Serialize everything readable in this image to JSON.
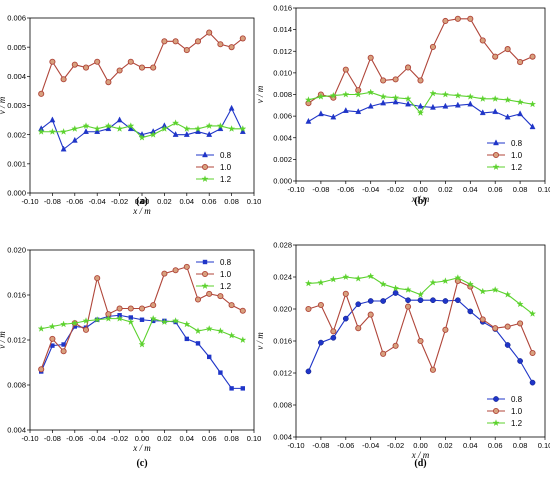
{
  "colors": {
    "s08": "#1f35c8",
    "s10": "#b0463a",
    "s12": "#5cd22e",
    "axis": "#000000"
  },
  "chart_data": [
    {
      "panel": "(a)",
      "type": "line",
      "xlabel": "x / m",
      "ylabel": "v / m",
      "xlim": [
        -0.1,
        0.1
      ],
      "ylim": [
        0.0,
        0.006
      ],
      "xticks": [
        "-0.10",
        "-0.08",
        "-0.06",
        "-0.04",
        "-0.02",
        "0.00",
        "0.02",
        "0.04",
        "0.06",
        "0.08",
        "0.10"
      ],
      "yticks": [
        "0.000",
        "0.001",
        "0.002",
        "0.003",
        "0.004",
        "0.005",
        "0.006"
      ],
      "grid": false,
      "legend_position": "bottom-right",
      "series": [
        {
          "name": "0.8",
          "marker": "triangle",
          "color": "#1f35c8",
          "x": [
            -0.09,
            -0.08,
            -0.07,
            -0.06,
            -0.05,
            -0.04,
            -0.03,
            -0.02,
            -0.01,
            0.0,
            0.01,
            0.02,
            0.03,
            0.04,
            0.05,
            0.06,
            0.07,
            0.08,
            0.09
          ],
          "y": [
            0.0022,
            0.0025,
            0.0015,
            0.0018,
            0.0021,
            0.0021,
            0.0022,
            0.0025,
            0.0022,
            0.002,
            0.0021,
            0.0023,
            0.002,
            0.002,
            0.0021,
            0.002,
            0.0022,
            0.0029,
            0.0021
          ]
        },
        {
          "name": "1.0",
          "marker": "circle",
          "color": "#b0463a",
          "x": [
            -0.09,
            -0.08,
            -0.07,
            -0.06,
            -0.05,
            -0.04,
            -0.03,
            -0.02,
            -0.01,
            0.0,
            0.01,
            0.02,
            0.03,
            0.04,
            0.05,
            0.06,
            0.07,
            0.08,
            0.09
          ],
          "y": [
            0.0034,
            0.0045,
            0.0039,
            0.0044,
            0.0043,
            0.0045,
            0.0038,
            0.0042,
            0.0045,
            0.0043,
            0.0043,
            0.0052,
            0.0052,
            0.0049,
            0.0052,
            0.0055,
            0.0051,
            0.005,
            0.0053
          ]
        },
        {
          "name": "1.2",
          "marker": "star",
          "color": "#5cd22e",
          "x": [
            -0.09,
            -0.08,
            -0.07,
            -0.06,
            -0.05,
            -0.04,
            -0.03,
            -0.02,
            -0.01,
            0.0,
            0.01,
            0.02,
            0.03,
            0.04,
            0.05,
            0.06,
            0.07,
            0.08,
            0.09
          ],
          "y": [
            0.0021,
            0.0021,
            0.0021,
            0.0022,
            0.0023,
            0.0022,
            0.0023,
            0.0022,
            0.0023,
            0.0019,
            0.002,
            0.0022,
            0.0024,
            0.0022,
            0.0022,
            0.0023,
            0.0023,
            0.0022,
            0.0022
          ]
        }
      ]
    },
    {
      "panel": "(b)",
      "type": "line",
      "xlabel": "x / m",
      "ylabel": "v / m",
      "xlim": [
        -0.1,
        0.1
      ],
      "ylim": [
        0.0,
        0.016
      ],
      "xticks": [
        "-0.10",
        "-0.08",
        "-0.06",
        "-0.04",
        "-0.02",
        "0.00",
        "0.02",
        "0.04",
        "0.06",
        "0.08",
        "0.10"
      ],
      "yticks": [
        "0.000",
        "0.002",
        "0.004",
        "0.006",
        "0.008",
        "0.010",
        "0.012",
        "0.014",
        "0.016"
      ],
      "grid": false,
      "legend_position": "bottom-right",
      "series": [
        {
          "name": "0.8",
          "marker": "triangle",
          "color": "#1f35c8",
          "x": [
            -0.09,
            -0.08,
            -0.07,
            -0.06,
            -0.05,
            -0.04,
            -0.03,
            -0.02,
            -0.01,
            0.0,
            0.01,
            0.02,
            0.03,
            0.04,
            0.05,
            0.06,
            0.07,
            0.08,
            0.09
          ],
          "y": [
            0.0055,
            0.0062,
            0.0059,
            0.0065,
            0.0064,
            0.0069,
            0.0072,
            0.0073,
            0.0071,
            0.0069,
            0.0068,
            0.0069,
            0.007,
            0.0071,
            0.0063,
            0.0064,
            0.0059,
            0.0062,
            0.005
          ]
        },
        {
          "name": "1.0",
          "marker": "circle",
          "color": "#b0463a",
          "x": [
            -0.09,
            -0.08,
            -0.07,
            -0.06,
            -0.05,
            -0.04,
            -0.03,
            -0.02,
            -0.01,
            0.0,
            0.01,
            0.02,
            0.03,
            0.04,
            0.05,
            0.06,
            0.07,
            0.08,
            0.09
          ],
          "y": [
            0.0072,
            0.008,
            0.0077,
            0.0103,
            0.0084,
            0.0114,
            0.0093,
            0.0094,
            0.0105,
            0.0093,
            0.0124,
            0.0148,
            0.015,
            0.015,
            0.013,
            0.0115,
            0.0122,
            0.011,
            0.0115
          ]
        },
        {
          "name": "1.2",
          "marker": "star",
          "color": "#5cd22e",
          "x": [
            -0.09,
            -0.08,
            -0.07,
            -0.06,
            -0.05,
            -0.04,
            -0.03,
            -0.02,
            -0.01,
            0.0,
            0.01,
            0.02,
            0.03,
            0.04,
            0.05,
            0.06,
            0.07,
            0.08,
            0.09
          ],
          "y": [
            0.0075,
            0.0078,
            0.0079,
            0.008,
            0.008,
            0.0082,
            0.0078,
            0.0077,
            0.0076,
            0.0063,
            0.0081,
            0.008,
            0.0079,
            0.0078,
            0.0076,
            0.0076,
            0.0075,
            0.0073,
            0.0071
          ]
        }
      ]
    },
    {
      "panel": "(c)",
      "type": "line",
      "xlabel": "x / m",
      "ylabel": "v / m",
      "xlim": [
        -0.1,
        0.1
      ],
      "ylim": [
        0.004,
        0.02
      ],
      "xticks": [
        "-0.10",
        "-0.08",
        "-0.06",
        "-0.04",
        "-0.02",
        "0.00",
        "0.02",
        "0.04",
        "0.06",
        "0.08",
        "0.10"
      ],
      "yticks": [
        "0.004",
        "0.008",
        "0.012",
        "0.016",
        "0.020"
      ],
      "grid": false,
      "legend_position": "top-right",
      "series": [
        {
          "name": "0.8",
          "marker": "square",
          "color": "#1f35c8",
          "x": [
            -0.09,
            -0.08,
            -0.07,
            -0.06,
            -0.05,
            -0.04,
            -0.03,
            -0.02,
            -0.01,
            0.0,
            0.01,
            0.02,
            0.03,
            0.04,
            0.05,
            0.06,
            0.07,
            0.08,
            0.09
          ],
          "y": [
            0.0092,
            0.0115,
            0.0116,
            0.0132,
            0.0131,
            0.0138,
            0.0141,
            0.0142,
            0.014,
            0.0138,
            0.0137,
            0.0137,
            0.0136,
            0.0121,
            0.0117,
            0.0105,
            0.0091,
            0.0077,
            0.0077
          ]
        },
        {
          "name": "1.0",
          "marker": "circle",
          "color": "#b0463a",
          "x": [
            -0.09,
            -0.08,
            -0.07,
            -0.06,
            -0.05,
            -0.04,
            -0.03,
            -0.02,
            -0.01,
            0.0,
            0.01,
            0.02,
            0.03,
            0.04,
            0.05,
            0.06,
            0.07,
            0.08,
            0.09
          ],
          "y": [
            0.0094,
            0.0121,
            0.011,
            0.0135,
            0.0129,
            0.0175,
            0.0143,
            0.0148,
            0.0148,
            0.0148,
            0.0151,
            0.0179,
            0.0182,
            0.0185,
            0.0156,
            0.0161,
            0.0159,
            0.0151,
            0.0146
          ]
        },
        {
          "name": "1.2",
          "marker": "star",
          "color": "#5cd22e",
          "x": [
            -0.09,
            -0.08,
            -0.07,
            -0.06,
            -0.05,
            -0.04,
            -0.03,
            -0.02,
            -0.01,
            0.0,
            0.01,
            0.02,
            0.03,
            0.04,
            0.05,
            0.06,
            0.07,
            0.08,
            0.09
          ],
          "y": [
            0.013,
            0.0132,
            0.0134,
            0.0135,
            0.0137,
            0.0138,
            0.0139,
            0.0139,
            0.0136,
            0.0116,
            0.0139,
            0.0136,
            0.0137,
            0.0134,
            0.0128,
            0.013,
            0.0128,
            0.0124,
            0.012
          ]
        }
      ]
    },
    {
      "panel": "(d)",
      "type": "line",
      "xlabel": "x / m",
      "ylabel": "v / m",
      "xlim": [
        -0.1,
        0.1
      ],
      "ylim": [
        0.004,
        0.028
      ],
      "xticks": [
        "-0.10",
        "-0.08",
        "-0.06",
        "-0.04",
        "-0.02",
        "0.00",
        "0.02",
        "0.04",
        "0.06",
        "0.08",
        "0.10"
      ],
      "yticks": [
        "0.004",
        "0.008",
        "0.012",
        "0.016",
        "0.020",
        "0.024",
        "0.028"
      ],
      "grid": false,
      "legend_position": "bottom-right",
      "series": [
        {
          "name": "0.8",
          "marker": "circle-filled",
          "color": "#1f35c8",
          "x": [
            -0.09,
            -0.08,
            -0.07,
            -0.06,
            -0.05,
            -0.04,
            -0.03,
            -0.02,
            -0.01,
            0.0,
            0.01,
            0.02,
            0.03,
            0.04,
            0.05,
            0.06,
            0.07,
            0.08,
            0.09
          ],
          "y": [
            0.0122,
            0.0158,
            0.0164,
            0.0188,
            0.0206,
            0.021,
            0.021,
            0.022,
            0.0211,
            0.0211,
            0.0211,
            0.021,
            0.0211,
            0.0197,
            0.0184,
            0.0175,
            0.0155,
            0.0135,
            0.0108
          ]
        },
        {
          "name": "1.0",
          "marker": "circle",
          "color": "#b0463a",
          "x": [
            -0.09,
            -0.08,
            -0.07,
            -0.06,
            -0.05,
            -0.04,
            -0.03,
            -0.02,
            -0.01,
            0.0,
            0.01,
            0.02,
            0.03,
            0.04,
            0.05,
            0.06,
            0.07,
            0.08,
            0.09
          ],
          "y": [
            0.02,
            0.0205,
            0.0172,
            0.0219,
            0.0176,
            0.0193,
            0.0144,
            0.0154,
            0.0203,
            0.016,
            0.0124,
            0.0174,
            0.0235,
            0.0228,
            0.0187,
            0.0176,
            0.0178,
            0.0182,
            0.0145
          ]
        },
        {
          "name": "1.2",
          "marker": "star",
          "color": "#5cd22e",
          "x": [
            -0.09,
            -0.08,
            -0.07,
            -0.06,
            -0.05,
            -0.04,
            -0.03,
            -0.02,
            -0.01,
            0.0,
            0.01,
            0.02,
            0.03,
            0.04,
            0.05,
            0.06,
            0.07,
            0.08,
            0.09
          ],
          "y": [
            0.0232,
            0.0233,
            0.0237,
            0.024,
            0.0238,
            0.0241,
            0.0231,
            0.0226,
            0.0224,
            0.0218,
            0.0233,
            0.0235,
            0.0239,
            0.0231,
            0.0222,
            0.0224,
            0.0218,
            0.0206,
            0.0194
          ]
        }
      ]
    }
  ]
}
